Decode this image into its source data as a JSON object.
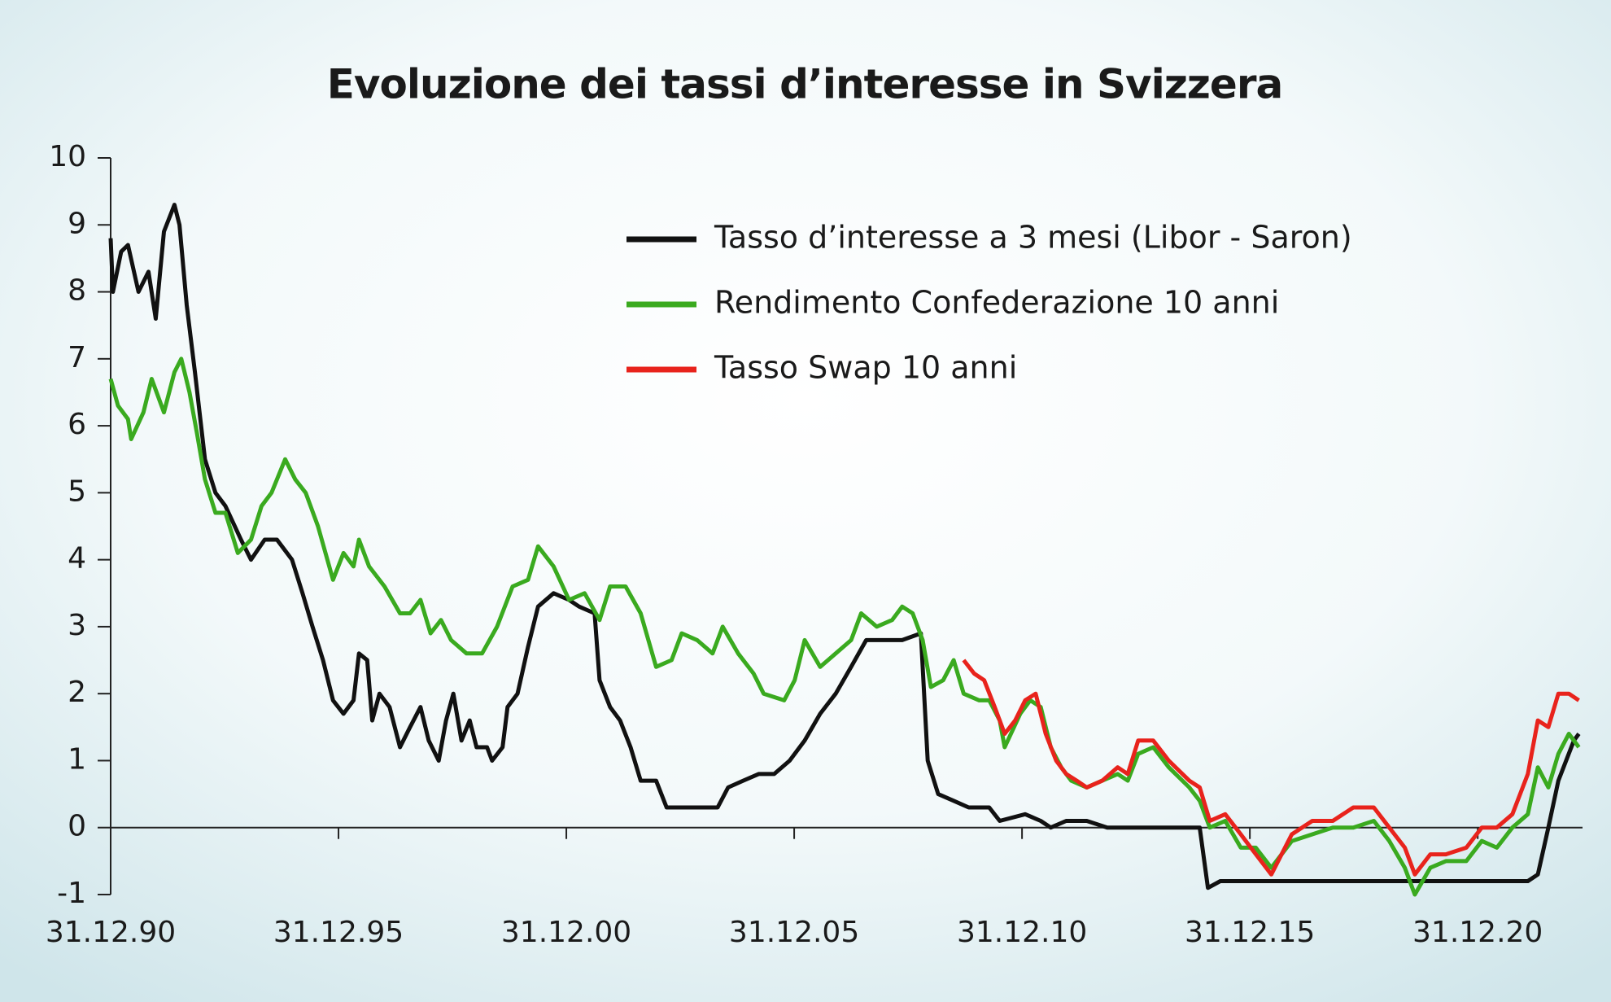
{
  "chart_data": {
    "type": "line",
    "title": "Evoluzione dei tassi d’interesse in Svizzera",
    "xlim": [
      1991,
      2023.3
    ],
    "xticks": [
      {
        "value": 1991,
        "label": "31.12.90"
      },
      {
        "value": 1996,
        "label": "31.12.95"
      },
      {
        "value": 2001,
        "label": "31.12.00"
      },
      {
        "value": 2006,
        "label": "31.12.05"
      },
      {
        "value": 2011,
        "label": "31.12.10"
      },
      {
        "value": 2016,
        "label": "31.12.15"
      },
      {
        "value": 2021,
        "label": "31.12.20"
      }
    ],
    "ylim": [
      -1,
      10
    ],
    "yticks": [
      -1,
      0,
      1,
      2,
      3,
      4,
      5,
      6,
      7,
      8,
      9,
      10
    ],
    "grid": false,
    "legend": "top-right",
    "series": [
      {
        "name": "Tasso d’interesse a 3 mesi (Libor - Saron)",
        "color": "#111111",
        "x": [
          1991.0,
          1991.05,
          1991.23,
          1991.38,
          1991.61,
          1991.83,
          1991.99,
          1992.17,
          1992.4,
          1992.51,
          1992.67,
          1992.85,
          1993.07,
          1993.3,
          1993.52,
          1993.86,
          1994.08,
          1994.38,
          1994.65,
          1994.98,
          1995.21,
          1995.43,
          1995.66,
          1995.88,
          1996.11,
          1996.33,
          1996.45,
          1996.63,
          1996.74,
          1996.9,
          1997.12,
          1997.35,
          1997.57,
          1997.8,
          1997.98,
          1998.2,
          1998.36,
          1998.52,
          1998.7,
          1998.88,
          1999.03,
          1999.26,
          1999.37,
          1999.6,
          1999.71,
          1999.93,
          2000.16,
          2000.38,
          2000.72,
          2001.06,
          2001.28,
          2001.62,
          2001.73,
          2001.96,
          2002.18,
          2002.41,
          2002.63,
          2002.97,
          2003.2,
          2003.65,
          2004.32,
          2004.55,
          2004.88,
          2005.22,
          2005.56,
          2005.9,
          2006.23,
          2006.57,
          2006.91,
          2007.25,
          2007.58,
          2007.92,
          2008.37,
          2008.78,
          2008.93,
          2009.16,
          2009.5,
          2009.83,
          2010.28,
          2010.51,
          2011.07,
          2011.41,
          2011.63,
          2011.97,
          2012.42,
          2012.87,
          2014.9,
          2015.08,
          2015.35,
          2015.8,
          2017.82,
          2020.07,
          2022.1,
          2022.32,
          2022.55,
          2022.77,
          2023.11,
          2023.22
        ],
        "values": [
          8.8,
          8.0,
          8.6,
          8.7,
          8.0,
          8.3,
          7.6,
          8.9,
          9.3,
          9.0,
          7.8,
          6.8,
          5.5,
          5.0,
          4.8,
          4.3,
          4.0,
          4.3,
          4.3,
          4.0,
          3.5,
          3.0,
          2.5,
          1.9,
          1.7,
          1.9,
          2.6,
          2.5,
          1.6,
          2.0,
          1.8,
          1.2,
          1.5,
          1.8,
          1.3,
          1.0,
          1.6,
          2.0,
          1.3,
          1.6,
          1.2,
          1.2,
          1.0,
          1.2,
          1.8,
          2.0,
          2.7,
          3.3,
          3.5,
          3.4,
          3.3,
          3.2,
          2.2,
          1.8,
          1.6,
          1.2,
          0.7,
          0.7,
          0.3,
          0.3,
          0.3,
          0.6,
          0.7,
          0.8,
          0.8,
          1.0,
          1.3,
          1.7,
          2.0,
          2.4,
          2.8,
          2.8,
          2.8,
          2.9,
          1.0,
          0.5,
          0.4,
          0.3,
          0.3,
          0.1,
          0.2,
          0.1,
          0.0,
          0.1,
          0.1,
          0.0,
          0.0,
          -0.9,
          -0.8,
          -0.8,
          -0.8,
          -0.8,
          -0.8,
          -0.7,
          0.0,
          0.7,
          1.3,
          1.4
        ]
      },
      {
        "name": "Rendimento Confederazione 10 anni",
        "color": "#3aaa1f",
        "x": [
          1991.0,
          1991.16,
          1991.38,
          1991.45,
          1991.72,
          1991.9,
          1992.17,
          1992.4,
          1992.55,
          1992.73,
          1992.89,
          1993.07,
          1993.3,
          1993.52,
          1993.79,
          1994.08,
          1994.31,
          1994.53,
          1994.83,
          1995.05,
          1995.28,
          1995.55,
          1995.88,
          1996.11,
          1996.33,
          1996.45,
          1996.67,
          1997.01,
          1997.35,
          1997.57,
          1997.8,
          1998.02,
          1998.25,
          1998.47,
          1998.81,
          1999.15,
          1999.48,
          1999.82,
          2000.16,
          2000.38,
          2000.72,
          2001.06,
          2001.4,
          2001.73,
          2001.96,
          2002.3,
          2002.63,
          2002.97,
          2003.31,
          2003.53,
          2003.87,
          2004.21,
          2004.43,
          2004.77,
          2005.11,
          2005.33,
          2005.78,
          2006.01,
          2006.23,
          2006.57,
          2006.91,
          2007.25,
          2007.47,
          2007.81,
          2008.15,
          2008.37,
          2008.6,
          2008.82,
          2009.0,
          2009.27,
          2009.5,
          2009.72,
          2010.06,
          2010.28,
          2010.51,
          2010.62,
          2010.96,
          2011.18,
          2011.41,
          2011.63,
          2011.86,
          2012.08,
          2012.42,
          2012.76,
          2013.1,
          2013.32,
          2013.55,
          2013.88,
          2014.22,
          2014.67,
          2014.9,
          2015.12,
          2015.46,
          2015.8,
          2016.13,
          2016.47,
          2016.92,
          2017.37,
          2017.82,
          2018.27,
          2018.72,
          2019.06,
          2019.4,
          2019.62,
          2019.96,
          2020.3,
          2020.75,
          2021.09,
          2021.42,
          2021.76,
          2022.1,
          2022.32,
          2022.55,
          2022.77,
          2023.0,
          2023.22
        ],
        "values": [
          6.7,
          6.3,
          6.1,
          5.8,
          6.2,
          6.7,
          6.2,
          6.8,
          7.0,
          6.5,
          5.9,
          5.2,
          4.7,
          4.7,
          4.1,
          4.3,
          4.8,
          5.0,
          5.5,
          5.2,
          5.0,
          4.5,
          3.7,
          4.1,
          3.9,
          4.3,
          3.9,
          3.6,
          3.2,
          3.2,
          3.4,
          2.9,
          3.1,
          2.8,
          2.6,
          2.6,
          3.0,
          3.6,
          3.7,
          4.2,
          3.9,
          3.4,
          3.5,
          3.1,
          3.6,
          3.6,
          3.2,
          2.4,
          2.5,
          2.9,
          2.8,
          2.6,
          3.0,
          2.6,
          2.3,
          2.0,
          1.9,
          2.2,
          2.8,
          2.4,
          2.6,
          2.8,
          3.2,
          3.0,
          3.1,
          3.3,
          3.2,
          2.8,
          2.1,
          2.2,
          2.5,
          2.0,
          1.9,
          1.9,
          1.6,
          1.2,
          1.7,
          1.9,
          1.8,
          1.2,
          0.9,
          0.7,
          0.6,
          0.7,
          0.8,
          0.7,
          1.1,
          1.2,
          0.9,
          0.6,
          0.4,
          0.0,
          0.1,
          -0.3,
          -0.3,
          -0.6,
          -0.2,
          -0.1,
          0.0,
          0.0,
          0.1,
          -0.2,
          -0.6,
          -1.0,
          -0.6,
          -0.5,
          -0.5,
          -0.2,
          -0.3,
          0.0,
          0.2,
          0.9,
          0.6,
          1.1,
          1.4,
          1.2
        ]
      },
      {
        "name": "Tasso Swap 10 anni",
        "color": "#e8231c",
        "x": [
          2009.72,
          2009.95,
          2010.17,
          2010.4,
          2010.62,
          2010.85,
          2011.07,
          2011.3,
          2011.52,
          2011.75,
          2011.97,
          2012.2,
          2012.42,
          2012.76,
          2013.1,
          2013.32,
          2013.55,
          2013.88,
          2014.22,
          2014.67,
          2014.9,
          2015.12,
          2015.46,
          2015.8,
          2016.02,
          2016.47,
          2016.92,
          2017.37,
          2017.82,
          2018.27,
          2018.72,
          2019.06,
          2019.4,
          2019.62,
          2019.96,
          2020.3,
          2020.75,
          2021.09,
          2021.42,
          2021.76,
          2022.1,
          2022.32,
          2022.55,
          2022.77,
          2023.0,
          2023.22
        ],
        "values": [
          2.5,
          2.3,
          2.2,
          1.8,
          1.4,
          1.6,
          1.9,
          2.0,
          1.4,
          1.0,
          0.8,
          0.7,
          0.6,
          0.7,
          0.9,
          0.8,
          1.3,
          1.3,
          1.0,
          0.7,
          0.6,
          0.1,
          0.2,
          -0.1,
          -0.3,
          -0.7,
          -0.1,
          0.1,
          0.1,
          0.3,
          0.3,
          0.0,
          -0.3,
          -0.7,
          -0.4,
          -0.4,
          -0.3,
          0.0,
          0.0,
          0.2,
          0.8,
          1.6,
          1.5,
          2.0,
          2.0,
          1.9
        ]
      }
    ]
  }
}
